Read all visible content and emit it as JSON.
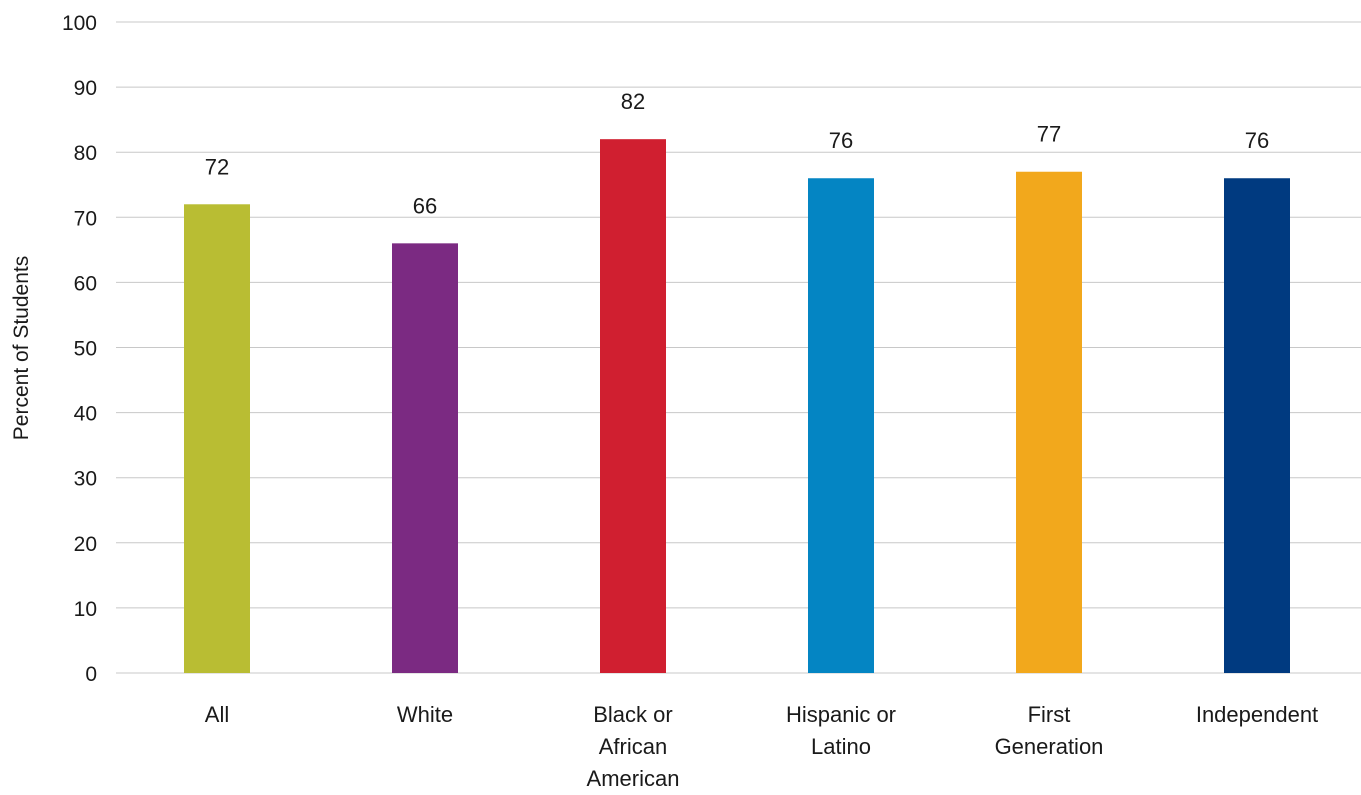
{
  "chart_data": {
    "type": "bar",
    "title": "",
    "xlabel": "",
    "ylabel": "Percent of Students",
    "ylim": [
      0,
      100
    ],
    "yticks": [
      0,
      10,
      20,
      30,
      40,
      50,
      60,
      70,
      80,
      90,
      100
    ],
    "grid": true,
    "legend": "none",
    "categories": [
      [
        "All"
      ],
      [
        "White"
      ],
      [
        "Black or",
        "African",
        "American"
      ],
      [
        "Hispanic or",
        "Latino"
      ],
      [
        "First",
        "Generation"
      ],
      [
        "Independent"
      ]
    ],
    "values": [
      72,
      66,
      82,
      76,
      77,
      76
    ],
    "value_labels": [
      "72",
      "66",
      "82",
      "76",
      "77",
      "76"
    ],
    "colors": [
      "#b9bd33",
      "#7b2a82",
      "#d01f30",
      "#0485c3",
      "#f2a81c",
      "#003a80"
    ]
  }
}
